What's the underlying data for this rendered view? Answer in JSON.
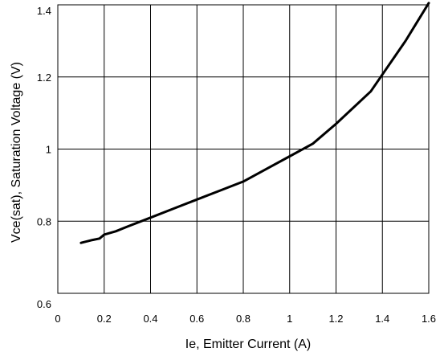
{
  "chart_data": {
    "type": "line",
    "title": "",
    "xlabel": "Ie, Emitter Current (A)",
    "ylabel": "Vce(sat), Saturation Voltage (V)",
    "xlim": [
      0,
      1.6
    ],
    "ylim": [
      0.6,
      1.4
    ],
    "grid": true,
    "x_ticks": [
      "0",
      "0.2",
      "0.4",
      "0.6",
      "0.8",
      "1",
      "1.2",
      "1.4",
      "1.6"
    ],
    "y_ticks": [
      "0.6",
      "0.8",
      "1",
      "1.2",
      "1.4"
    ],
    "series": [
      {
        "color": "#000000",
        "x": [
          0.1,
          0.15,
          0.18,
          0.2,
          0.25,
          0.3,
          0.4,
          0.5,
          0.6,
          0.7,
          0.8,
          0.9,
          1.0,
          1.1,
          1.2,
          1.35,
          1.5,
          1.6
        ],
        "y": [
          0.74,
          0.748,
          0.752,
          0.763,
          0.772,
          0.785,
          0.81,
          0.835,
          0.86,
          0.885,
          0.91,
          0.945,
          0.98,
          1.015,
          1.07,
          1.16,
          1.3,
          1.405
        ]
      }
    ]
  }
}
